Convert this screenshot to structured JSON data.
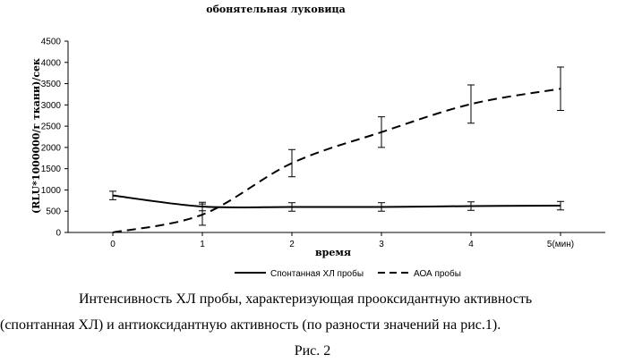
{
  "caption": {
    "line1": "Интенсивность ХЛ пробы, характеризующая прооксидантную активность",
    "line2": "(спонтанная ХЛ) и антиоксидантную активность (по разности значений на рис.1).",
    "figure": "Рис.   2"
  },
  "chart_data": {
    "type": "line",
    "title": "обонятельная луковица",
    "xlabel": "время",
    "ylabel": "(RLU*1000000/г ткани)/сек",
    "x": [
      0,
      1,
      2,
      3,
      4,
      5
    ],
    "xticks": [
      "0",
      "1",
      "2",
      "3",
      "4",
      "5(мин)"
    ],
    "xlim": [
      -0.5,
      5.5
    ],
    "ylim": [
      0,
      4500
    ],
    "yticks": [
      "0",
      "500",
      "1000",
      "1500",
      "2000",
      "2500",
      "3000",
      "3500",
      "4000",
      "4500"
    ],
    "grid": false,
    "legend_position": "bottom",
    "series": [
      {
        "name": "Спонтанная ХЛ пробы",
        "style": "solid",
        "color": "#000000",
        "values": [
          870,
          610,
          600,
          600,
          620,
          630
        ],
        "errors": [
          100,
          100,
          100,
          100,
          100,
          100
        ]
      },
      {
        "name": "АОА пробы",
        "style": "dashed",
        "color": "#000000",
        "values": [
          0,
          420,
          1630,
          2360,
          3020,
          3380
        ],
        "errors": [
          0,
          250,
          320,
          360,
          450,
          510
        ]
      }
    ]
  }
}
